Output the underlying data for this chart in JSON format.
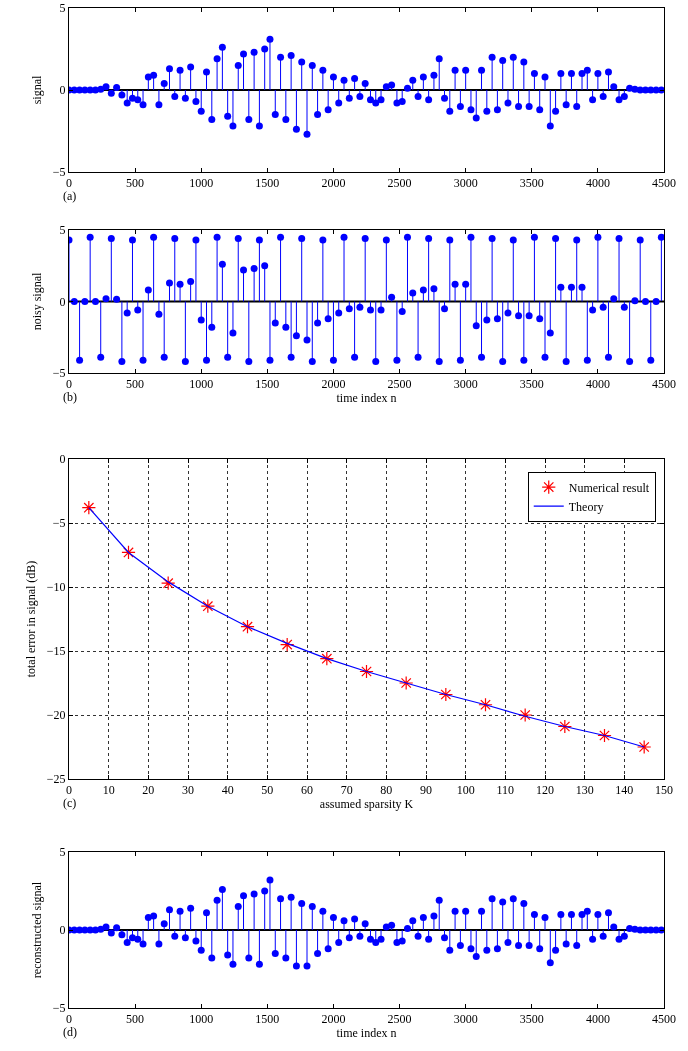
{
  "chart_data": [
    {
      "type": "lollipop",
      "ylabel": "signal",
      "annotations": [
        "(a)"
      ],
      "xlim": [
        0,
        4500
      ],
      "ylim": [
        -5,
        5
      ],
      "xticks": [
        0,
        500,
        1000,
        1500,
        2000,
        2500,
        3000,
        3500,
        4000,
        4500
      ],
      "yticks": [
        -5,
        0,
        5
      ],
      "marker": "circle",
      "x": [
        0,
        40,
        80,
        120,
        160,
        200,
        240,
        280,
        320,
        360,
        400,
        440,
        480,
        520,
        560,
        600,
        640,
        680,
        720,
        760,
        800,
        840,
        880,
        920,
        960,
        1000,
        1040,
        1080,
        1120,
        1160,
        1200,
        1240,
        1280,
        1320,
        1360,
        1400,
        1440,
        1480,
        1520,
        1560,
        1600,
        1640,
        1680,
        1720,
        1760,
        1800,
        1840,
        1880,
        1920,
        1960,
        2000,
        2040,
        2080,
        2120,
        2160,
        2200,
        2240,
        2280,
        2320,
        2360,
        2400,
        2440,
        2480,
        2520,
        2560,
        2600,
        2640,
        2680,
        2720,
        2760,
        2800,
        2840,
        2880,
        2920,
        2960,
        3000,
        3040,
        3080,
        3120,
        3160,
        3200,
        3240,
        3280,
        3320,
        3360,
        3400,
        3440,
        3480,
        3520,
        3560,
        3600,
        3640,
        3680,
        3720,
        3760,
        3800,
        3840,
        3880,
        3920,
        3960,
        4000,
        4040,
        4080,
        4120,
        4160,
        4200,
        4240,
        4280,
        4320,
        4360,
        4400,
        4440,
        4480
      ],
      "series": [
        {
          "color": "#0000ff",
          "values": [
            0,
            0,
            0,
            0,
            0,
            0,
            0.05,
            0.2,
            -0.2,
            0.15,
            -0.3,
            -0.8,
            -0.5,
            -0.6,
            -0.9,
            0.8,
            0.9,
            -0.9,
            0.4,
            1.3,
            -0.4,
            1.2,
            -0.5,
            1.4,
            -0.7,
            -1.3,
            1.1,
            -1.8,
            1.9,
            2.6,
            -1.6,
            -2.2,
            1.5,
            2.2,
            -1.8,
            2.3,
            -2.2,
            2.5,
            3.1,
            -1.5,
            2.0,
            -1.8,
            2.1,
            -2.4,
            1.7,
            -2.7,
            1.5,
            -1.5,
            1.2,
            -1.2,
            0.8,
            -0.8,
            0.6,
            -0.5,
            0.7,
            -0.4,
            0.4,
            -0.6,
            -0.8,
            -0.6,
            0.2,
            0.3,
            -0.8,
            -0.7,
            0.1,
            0.6,
            -0.4,
            0.8,
            -0.6,
            0.9,
            1.9,
            -0.5,
            -1.3,
            1.2,
            -1.0,
            1.2,
            -1.2,
            -1.7,
            1.2,
            -1.3,
            2.0,
            -1.2,
            1.8,
            -0.8,
            2.0,
            -1.0,
            1.7,
            -1.0,
            1.0,
            -1.2,
            0.8,
            -2.2,
            -1.3,
            1.0,
            -0.9,
            1.0,
            -1.0,
            1.0,
            1.2,
            -0.6,
            1.0,
            -0.4,
            1.1,
            0.2,
            -0.6,
            -0.4,
            0.1,
            0.05,
            0,
            0,
            0,
            0,
            0
          ]
        }
      ]
    },
    {
      "type": "lollipop",
      "xlabel": "time index n",
      "ylabel": "noisy signal",
      "annotations": [
        "(b)"
      ],
      "xlim": [
        0,
        4500
      ],
      "ylim": [
        -5,
        5
      ],
      "xticks": [
        0,
        500,
        1000,
        1500,
        2000,
        2500,
        3000,
        3500,
        4000,
        4500
      ],
      "yticks": [
        -5,
        0,
        5
      ],
      "marker": "circle",
      "x": [
        0,
        40,
        80,
        120,
        160,
        200,
        240,
        280,
        320,
        360,
        400,
        440,
        480,
        520,
        560,
        600,
        640,
        680,
        720,
        760,
        800,
        840,
        880,
        920,
        960,
        1000,
        1040,
        1080,
        1120,
        1160,
        1200,
        1240,
        1280,
        1320,
        1360,
        1400,
        1440,
        1480,
        1520,
        1560,
        1600,
        1640,
        1680,
        1720,
        1760,
        1800,
        1840,
        1880,
        1920,
        1960,
        2000,
        2040,
        2080,
        2120,
        2160,
        2200,
        2240,
        2280,
        2320,
        2360,
        2400,
        2440,
        2480,
        2520,
        2560,
        2600,
        2640,
        2680,
        2720,
        2760,
        2800,
        2840,
        2880,
        2920,
        2960,
        3000,
        3040,
        3080,
        3120,
        3160,
        3200,
        3240,
        3280,
        3320,
        3360,
        3400,
        3440,
        3480,
        3520,
        3560,
        3600,
        3640,
        3680,
        3720,
        3760,
        3800,
        3840,
        3880,
        3920,
        3960,
        4000,
        4040,
        4080,
        4120,
        4160,
        4200,
        4240,
        4280,
        4320,
        4360,
        4400,
        4440,
        4480
      ],
      "series": [
        {
          "color": "#0000ff",
          "values": [
            4.3,
            0,
            -4.1,
            0,
            4.5,
            0,
            -3.9,
            0.2,
            4.4,
            0.15,
            -4.2,
            -0.8,
            4.3,
            -0.6,
            -4.1,
            0.8,
            4.5,
            -0.9,
            -3.9,
            1.3,
            4.4,
            1.2,
            -4.2,
            1.4,
            4.3,
            -1.3,
            -4.1,
            -1.8,
            4.5,
            2.6,
            -3.9,
            -2.2,
            4.4,
            2.2,
            -4.2,
            2.3,
            4.3,
            2.5,
            -4.1,
            -1.5,
            4.5,
            -1.8,
            -3.9,
            -2.4,
            4.4,
            -2.7,
            -4.2,
            -1.5,
            4.3,
            -1.2,
            -4.1,
            -0.8,
            4.5,
            -0.5,
            -3.9,
            -0.4,
            4.4,
            -0.6,
            -4.2,
            -0.6,
            4.3,
            0.3,
            -4.1,
            -0.7,
            4.5,
            0.6,
            -3.9,
            0.8,
            4.4,
            0.9,
            -4.2,
            -0.5,
            4.3,
            1.2,
            -4.1,
            1.2,
            4.5,
            -1.7,
            -3.9,
            -1.3,
            4.4,
            -1.2,
            -4.2,
            -0.8,
            4.3,
            -1.0,
            -4.1,
            -1.0,
            4.5,
            -1.2,
            -3.9,
            -2.2,
            4.4,
            1.0,
            -4.2,
            1.0,
            4.3,
            1.0,
            -4.1,
            -0.6,
            4.5,
            -0.4,
            -3.9,
            0.2,
            4.4,
            -0.4,
            -4.2,
            0.05,
            4.3,
            0,
            -4.1,
            0,
            4.5
          ]
        }
      ]
    },
    {
      "type": "line",
      "xlabel": "assumed sparsity K",
      "ylabel": "total error in signal (dB)",
      "annotations": [
        "(c)"
      ],
      "xlim": [
        0,
        150
      ],
      "ylim": [
        -25,
        0
      ],
      "xticks": [
        0,
        10,
        20,
        30,
        40,
        50,
        60,
        70,
        80,
        90,
        100,
        110,
        120,
        130,
        140,
        150
      ],
      "yticks": [
        -25,
        -20,
        -15,
        -10,
        -5,
        0
      ],
      "grid": true,
      "legend": "top right",
      "x": [
        5,
        15,
        25,
        35,
        45,
        55,
        65,
        75,
        85,
        95,
        105,
        115,
        125,
        135,
        145
      ],
      "series": [
        {
          "name": "Numerical result",
          "type": "scatter",
          "marker": "cross",
          "color": "#ff0000",
          "values": [
            -3.8,
            -7.3,
            -9.7,
            -11.5,
            -13.1,
            -14.5,
            -15.6,
            -16.6,
            -17.5,
            -18.4,
            -19.2,
            -20.0,
            -20.9,
            -21.6,
            -22.5
          ]
        },
        {
          "name": "Theory",
          "type": "line",
          "marker": "none",
          "line_style": "solid",
          "color": "#0000ff",
          "values": [
            -3.8,
            -7.3,
            -9.6,
            -11.5,
            -13.1,
            -14.4,
            -15.6,
            -16.6,
            -17.5,
            -18.4,
            -19.2,
            -20.1,
            -20.9,
            -21.6,
            -22.5
          ]
        }
      ]
    },
    {
      "type": "lollipop",
      "xlabel": "time index n",
      "ylabel": "reconstructed signal",
      "annotations": [
        "(d)"
      ],
      "xlim": [
        0,
        4500
      ],
      "ylim": [
        -5,
        5
      ],
      "xticks": [
        0,
        500,
        1000,
        1500,
        2000,
        2500,
        3000,
        3500,
        4000,
        4500
      ],
      "yticks": [
        -5,
        0,
        5
      ],
      "marker": "circle",
      "x": [
        0,
        40,
        80,
        120,
        160,
        200,
        240,
        280,
        320,
        360,
        400,
        440,
        480,
        520,
        560,
        600,
        640,
        680,
        720,
        760,
        800,
        840,
        880,
        920,
        960,
        1000,
        1040,
        1080,
        1120,
        1160,
        1200,
        1240,
        1280,
        1320,
        1360,
        1400,
        1440,
        1480,
        1520,
        1560,
        1600,
        1640,
        1680,
        1720,
        1760,
        1800,
        1840,
        1880,
        1920,
        1960,
        2000,
        2040,
        2080,
        2120,
        2160,
        2200,
        2240,
        2280,
        2320,
        2360,
        2400,
        2440,
        2480,
        2520,
        2560,
        2600,
        2640,
        2680,
        2720,
        2760,
        2800,
        2840,
        2880,
        2920,
        2960,
        3000,
        3040,
        3080,
        3120,
        3160,
        3200,
        3240,
        3280,
        3320,
        3360,
        3400,
        3440,
        3480,
        3520,
        3560,
        3600,
        3640,
        3680,
        3720,
        3760,
        3800,
        3840,
        3880,
        3920,
        3960,
        4000,
        4040,
        4080,
        4120,
        4160,
        4200,
        4240,
        4280,
        4320,
        4360,
        4400,
        4440,
        4480
      ],
      "series": [
        {
          "color": "#0000ff",
          "values": [
            0,
            0,
            0,
            0,
            0,
            0,
            0.05,
            0.2,
            -0.2,
            0.15,
            -0.3,
            -0.8,
            -0.5,
            -0.6,
            -0.9,
            0.8,
            0.9,
            -0.9,
            0.4,
            1.3,
            -0.4,
            1.2,
            -0.5,
            1.4,
            -0.7,
            -1.3,
            1.1,
            -1.8,
            1.9,
            2.6,
            -1.6,
            -2.2,
            1.5,
            2.2,
            -1.8,
            2.3,
            -2.2,
            2.5,
            3.2,
            -1.5,
            2.0,
            -1.8,
            2.1,
            -2.3,
            1.7,
            -2.3,
            1.5,
            -1.5,
            1.2,
            -1.2,
            0.8,
            -0.8,
            0.6,
            -0.5,
            0.7,
            -0.4,
            0.4,
            -0.6,
            -0.8,
            -0.6,
            0.2,
            0.3,
            -0.8,
            -0.7,
            0.1,
            0.6,
            -0.4,
            0.8,
            -0.6,
            0.9,
            1.9,
            -0.5,
            -1.3,
            1.2,
            -1.0,
            1.2,
            -1.2,
            -1.7,
            1.2,
            -1.3,
            2.0,
            -1.2,
            1.8,
            -0.8,
            2.0,
            -1.0,
            1.7,
            -1.0,
            1.0,
            -1.2,
            0.8,
            -2.1,
            -1.3,
            1.0,
            -0.9,
            1.0,
            -1.0,
            1.0,
            1.2,
            -0.6,
            1.0,
            -0.4,
            1.1,
            0.2,
            -0.6,
            -0.4,
            0.1,
            0.05,
            0,
            0,
            0,
            0,
            0
          ]
        }
      ]
    }
  ]
}
